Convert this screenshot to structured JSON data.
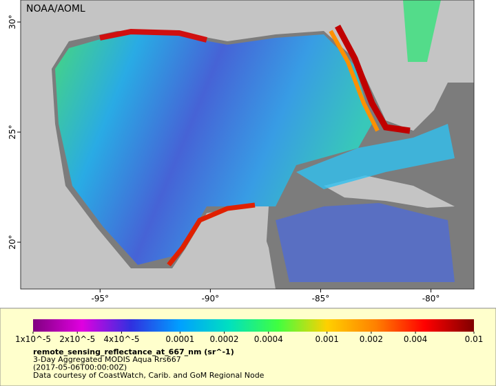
{
  "map": {
    "title": "NOAA/AOML",
    "xlim": [
      -98.6,
      -78.05
    ],
    "ylim": [
      17.875,
      31
    ],
    "xticks": [
      {
        "value": -95,
        "label": "-95°"
      },
      {
        "value": -90,
        "label": "-90°"
      },
      {
        "value": -85,
        "label": "-85°"
      },
      {
        "value": -80,
        "label": "-80°"
      }
    ],
    "yticks": [
      {
        "value": 20,
        "label": "20°"
      },
      {
        "value": 25,
        "label": "25°"
      },
      {
        "value": 30,
        "label": "30°"
      }
    ]
  },
  "legend": {
    "colorbar": {
      "scale": "log",
      "lim": [
        1e-05,
        0.01
      ],
      "colors": [
        "#800080",
        "#e000e0",
        "#3030e0",
        "#00a0ff",
        "#00e0c0",
        "#40ff40",
        "#ffd000",
        "#ff8000",
        "#ff0000",
        "#800000"
      ],
      "ticks": [
        {
          "value": 1e-05,
          "label": "1x10^-5"
        },
        {
          "value": 2e-05,
          "label": "2x10^-5"
        },
        {
          "value": 4e-05,
          "label": "4x10^-5"
        },
        {
          "value": 0.0001,
          "label": "0.0001"
        },
        {
          "value": 0.0002,
          "label": "0.0002"
        },
        {
          "value": 0.0004,
          "label": "0.0004"
        },
        {
          "value": 0.001,
          "label": "0.001"
        },
        {
          "value": 0.002,
          "label": "0.002"
        },
        {
          "value": 0.004,
          "label": "0.004"
        },
        {
          "value": 0.01,
          "label": "0.01"
        }
      ]
    },
    "variable": "remote_sensing_reflectance_at_667_nm (sr^-1)",
    "lines": [
      "3-Day Aggregated MODIS Aqua Rrs667",
      "(2017-05-06T00:00:00Z)",
      "Data courtesy of CoastWatch, Carib. and GoM Regional Node"
    ]
  }
}
